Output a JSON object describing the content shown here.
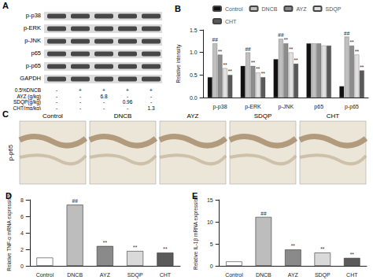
{
  "blot": {
    "panel": "A",
    "rows": [
      "p-p38",
      "p-ERK",
      "p-JNK",
      "p65",
      "p-p65",
      "GAPDH"
    ],
    "treatments": [
      {
        "label": "0.5%DNCB",
        "marks": [
          "-",
          "+",
          "+",
          "+",
          "+"
        ]
      },
      {
        "label": "AYZ (g/kg)",
        "marks": [
          "-",
          "-",
          "6.8",
          "-",
          "-"
        ]
      },
      {
        "label": "SDQP(g/kg)",
        "marks": [
          "-",
          "-",
          "-",
          "0.96",
          "-"
        ]
      },
      {
        "label": "CHT(mg/kg)",
        "marks": [
          "-",
          "-",
          "-",
          "-",
          "1.3"
        ]
      }
    ]
  },
  "ihc": {
    "panel": "C",
    "row_label": "p-p65",
    "columns": [
      "Control",
      "DNCB",
      "AYZ",
      "SDQP",
      "CHT"
    ]
  },
  "chart_data": [
    {
      "panel": "B",
      "type": "bar",
      "y_label": "Relative intensity",
      "categories": [
        "p-p38",
        "p-ERK",
        "p-JNK",
        "p65",
        "p-p65"
      ],
      "series": [
        {
          "name": "Control",
          "color": "#111111",
          "values": [
            0.45,
            0.7,
            0.85,
            1.2,
            0.25
          ]
        },
        {
          "name": "DNCB",
          "color": "#bfbfbf",
          "values": [
            1.2,
            1.0,
            1.3,
            1.2,
            1.35
          ],
          "marks": [
            "##",
            "##",
            "##",
            null,
            "##"
          ]
        },
        {
          "name": "AYZ",
          "color": "#8c8c8c",
          "values": [
            0.95,
            0.7,
            1.2,
            1.2,
            1.15
          ],
          "marks": [
            "**",
            "**",
            "**",
            null,
            "**"
          ]
        },
        {
          "name": "SDQP",
          "color": "#e0e0e0",
          "values": [
            0.65,
            0.55,
            1.0,
            1.15,
            0.95
          ],
          "marks": [
            "**",
            "**",
            "**",
            null,
            "**"
          ]
        },
        {
          "name": "CHT",
          "color": "#595959",
          "values": [
            0.5,
            0.45,
            0.75,
            1.15,
            0.6
          ],
          "marks": [
            "**",
            "**",
            "**",
            null,
            "**"
          ]
        }
      ],
      "ylim": [
        0,
        1.5
      ],
      "yticks": [
        {
          "value": 0,
          "label": "0.0"
        },
        {
          "value": 0.5,
          "label": "0.5"
        },
        {
          "value": 1,
          "label": "1.0"
        },
        {
          "value": 1.5,
          "label": "1.5"
        }
      ],
      "legend": "top",
      "grid": false
    },
    {
      "panel": "D",
      "type": "bar",
      "y_label": "Relative TNF-α mRNA expression",
      "categories": [
        "Control",
        "DNCB",
        "AYZ",
        "SDQP",
        "CHT"
      ],
      "values": [
        1,
        7.4,
        2.4,
        1.8,
        1.6
      ],
      "marks": [
        null,
        "##",
        "**",
        "**",
        "**"
      ],
      "colors": [
        "#ffffff",
        "#bdbdbd",
        "#8a8a8a",
        "#d9d9d9",
        "#5a5a5a"
      ],
      "ylim": [
        0,
        8
      ],
      "yticks": [
        0,
        2,
        4,
        6,
        8
      ],
      "grid": false
    },
    {
      "panel": "E",
      "type": "bar",
      "y_label": "Relative IL-1β mRNA expression",
      "categories": [
        "Control",
        "DNCB",
        "AYZ",
        "SDQP",
        "CHT"
      ],
      "values": [
        1,
        11.1,
        3.7,
        3.0,
        1.8
      ],
      "marks": [
        null,
        "##",
        "**",
        "**",
        "**"
      ],
      "colors": [
        "#ffffff",
        "#bdbdbd",
        "#8a8a8a",
        "#d9d9d9",
        "#5a5a5a"
      ],
      "ylim": [
        0,
        15
      ],
      "yticks": [
        0,
        5,
        10,
        15
      ],
      "grid": false
    }
  ]
}
